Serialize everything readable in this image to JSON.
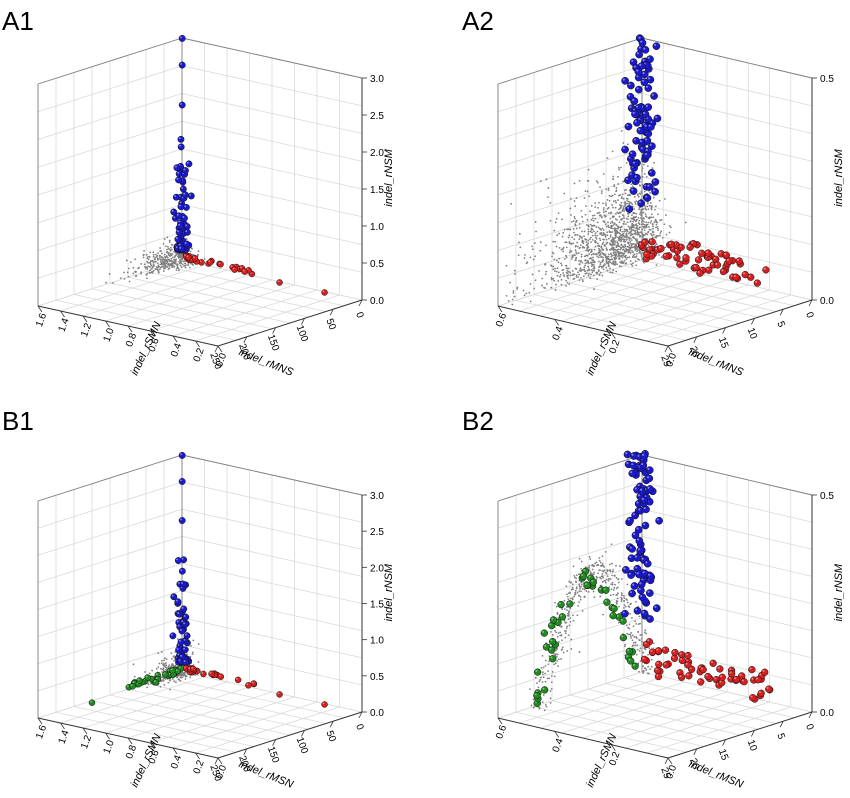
{
  "figure": {
    "panels": [
      {
        "label": "A1",
        "chart_data": {
          "type": "scatter",
          "axes": {
            "x": {
              "label": "indel_rMNS",
              "range": [
                0,
                250
              ],
              "ticks": [
                "0",
                "50",
                "100",
                "150",
                "200",
                "250"
              ]
            },
            "y": {
              "label": "indel_rSMN",
              "range": [
                0,
                1.6
              ],
              "ticks": [
                "0.0",
                "0.2",
                "0.4",
                "0.6",
                "0.8",
                "1.0",
                "1.2",
                "1.4",
                "1.6"
              ]
            },
            "z": {
              "label": "indel_rNSM",
              "range": [
                0,
                3.0
              ],
              "ticks": [
                "0.0",
                "0.5",
                "1.0",
                "1.5",
                "2.0",
                "2.5",
                "3.0"
              ]
            }
          },
          "grid": true,
          "series": [
            {
              "color": "#808080",
              "marker": "small-dot"
            },
            {
              "color": "#1a1acc",
              "marker": "sphere"
            },
            {
              "color": "#d42020",
              "marker": "sphere"
            }
          ],
          "highlights": {
            "blue_z_max": 3.0,
            "red_x_max": 230
          }
        }
      },
      {
        "label": "A2",
        "chart_data": {
          "type": "scatter",
          "axes": {
            "x": {
              "label": "indel_rMNS",
              "range": [
                0,
                25
              ],
              "ticks": [
                "0",
                "5",
                "10",
                "15",
                "20",
                "25"
              ]
            },
            "y": {
              "label": "indel_rSMN",
              "range": [
                0,
                0.6
              ],
              "ticks": [
                "0.0",
                "0.2",
                "0.4",
                "0.6"
              ]
            },
            "z": {
              "label": "indel_rNSM",
              "range": [
                0,
                0.5
              ],
              "ticks": [
                "0.0",
                "0.5"
              ]
            }
          },
          "grid": true,
          "series": [
            {
              "color": "#808080",
              "marker": "small-dot"
            },
            {
              "color": "#1a1acc",
              "marker": "sphere"
            },
            {
              "color": "#d42020",
              "marker": "sphere"
            }
          ]
        }
      },
      {
        "label": "B1",
        "chart_data": {
          "type": "scatter",
          "axes": {
            "x": {
              "label": "indel_rMSN",
              "range": [
                0,
                250
              ],
              "ticks": [
                "0",
                "50",
                "100",
                "150",
                "200",
                "250"
              ]
            },
            "y": {
              "label": "indel_rSMN",
              "range": [
                0,
                1.6
              ],
              "ticks": [
                "0.0",
                "0.2",
                "0.4",
                "0.6",
                "0.8",
                "1.0",
                "1.2",
                "1.4",
                "1.6"
              ]
            },
            "z": {
              "label": "indel_rNSM",
              "range": [
                0,
                3.0
              ],
              "ticks": [
                "0.0",
                "0.5",
                "1.0",
                "1.5",
                "2.0",
                "2.5",
                "3.0"
              ]
            }
          },
          "grid": true,
          "series": [
            {
              "color": "#808080",
              "marker": "small-dot"
            },
            {
              "color": "#1a1acc",
              "marker": "sphere"
            },
            {
              "color": "#d42020",
              "marker": "sphere"
            },
            {
              "color": "#1f8a1f",
              "marker": "sphere"
            }
          ]
        }
      },
      {
        "label": "B2",
        "chart_data": {
          "type": "scatter",
          "axes": {
            "x": {
              "label": "indel_rMSN",
              "range": [
                0,
                25
              ],
              "ticks": [
                "0",
                "5",
                "10",
                "15",
                "20",
                "25"
              ]
            },
            "y": {
              "label": "indel_rSMN",
              "range": [
                0,
                0.6
              ],
              "ticks": [
                "0.0",
                "0.2",
                "0.4",
                "0.6"
              ]
            },
            "z": {
              "label": "indel_rNSM",
              "range": [
                0,
                0.5
              ],
              "ticks": [
                "0.0",
                "0.5"
              ]
            }
          },
          "grid": true,
          "series": [
            {
              "color": "#808080",
              "marker": "small-dot"
            },
            {
              "color": "#1a1acc",
              "marker": "sphere"
            },
            {
              "color": "#d42020",
              "marker": "sphere"
            },
            {
              "color": "#1f8a1f",
              "marker": "sphere"
            }
          ]
        }
      }
    ]
  }
}
